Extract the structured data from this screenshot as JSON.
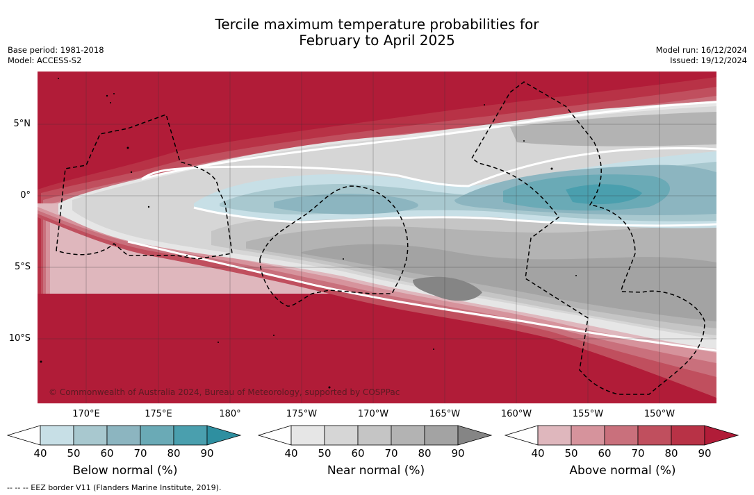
{
  "title": {
    "line1": "Tercile maximum temperature probabilities for",
    "line2": "February to April 2025"
  },
  "meta_left": {
    "base_period": "Base period: 1981-2018",
    "model": "Model: ACCESS-S2"
  },
  "meta_right": {
    "model_run": "Model run: 16/12/2024",
    "issued": "Issued: 19/12/2024"
  },
  "lat_labels": [
    "5°N",
    "0°",
    "5°S",
    "10°S"
  ],
  "lon_labels": [
    "170°E",
    "175°E",
    "180°",
    "175°W",
    "170°W",
    "165°W",
    "160°W",
    "155°W",
    "150°W"
  ],
  "credit": "© Commonwealth of Australia 2024, Bureau of Meteorology, supported by COSPPac",
  "colorbars": [
    {
      "label": "Below normal (%)",
      "ticks": [
        "40",
        "50",
        "60",
        "70",
        "80",
        "90"
      ],
      "colors": [
        "#ffffff",
        "#c7dfe6",
        "#a8c8cf",
        "#8cb5c0",
        "#6aaab6",
        "#4a9fae",
        "#2e8fa0"
      ]
    },
    {
      "label": "Near normal (%)",
      "ticks": [
        "40",
        "50",
        "60",
        "70",
        "80",
        "90"
      ],
      "colors": [
        "#ffffff",
        "#e6e6e6",
        "#d6d6d6",
        "#c5c5c5",
        "#b3b3b3",
        "#a3a3a3",
        "#858585"
      ]
    },
    {
      "label": "Above normal (%)",
      "ticks": [
        "40",
        "50",
        "60",
        "70",
        "80",
        "90"
      ],
      "colors": [
        "#ffffff",
        "#dfb7bd",
        "#d6939c",
        "#c9707c",
        "#c04f5e",
        "#b83246",
        "#b11c38"
      ]
    }
  ],
  "footnote": "-- -- -- EEZ border V11 (Flanders Marine Institute, 2019)."
}
